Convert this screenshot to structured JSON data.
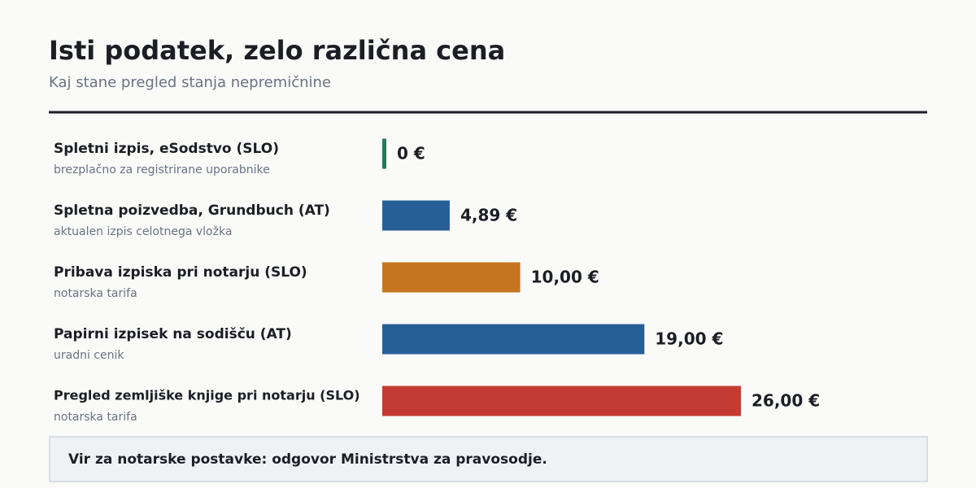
{
  "chart_data": {
    "type": "bar",
    "orientation": "horizontal",
    "title": "Isti podatek, zelo različna cena",
    "subtitle": "Kaj stane pregled stanja nepremičnine",
    "categories": [
      "Spletni izpis, eSodstvo (SLO)",
      "Spletna poizvedba, Grundbuch (AT)",
      "Pribava izpiska pri notarju (SLO)",
      "Papirni izpisek na sodišču (AT)",
      "Pregled zemljiške knjige pri notarju (SLO)"
    ],
    "category_notes": [
      "brezplačno za registrirane uporabnike",
      "aktualen izpis celotnega vložka",
      "notarska tarifa",
      "uradni cenik",
      "notarska tarifa"
    ],
    "values": [
      0,
      4.89,
      10,
      19,
      26
    ],
    "value_labels": [
      "0 €",
      "4,89 €",
      "10,00 €",
      "19,00 €",
      "26,00 €"
    ],
    "colors": [
      "#237a57",
      "#265f96",
      "#c5751f",
      "#265f96",
      "#c33b33"
    ],
    "xlim": [
      0,
      26
    ],
    "footnote": "Vir za notarske postavke: odgovor Ministrstva za pravosodje."
  }
}
